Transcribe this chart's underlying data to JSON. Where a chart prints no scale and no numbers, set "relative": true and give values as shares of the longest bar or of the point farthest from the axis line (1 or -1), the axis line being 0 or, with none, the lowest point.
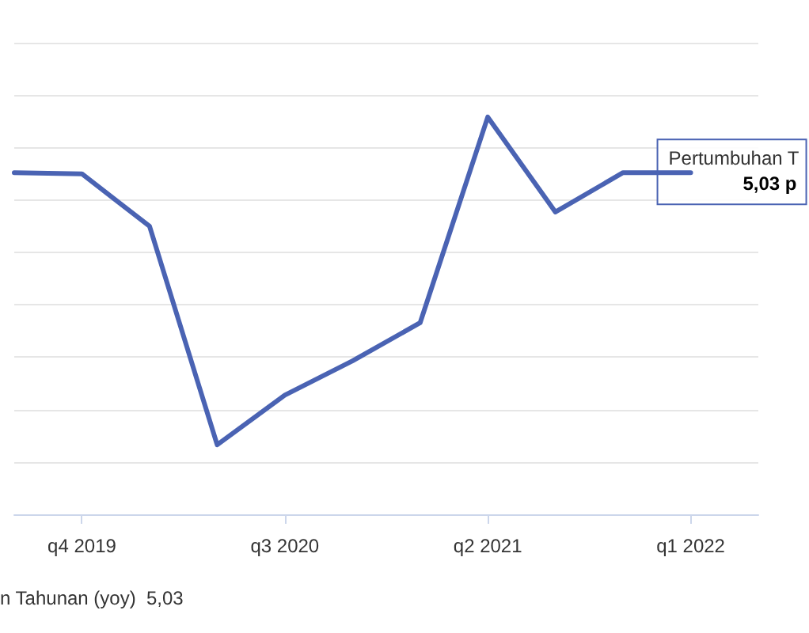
{
  "chart_data": {
    "type": "line",
    "relative": true,
    "grid": "y",
    "categories": [
      null,
      "q4 2019",
      null,
      null,
      "q3 2020",
      null,
      null,
      "q2 2021",
      null,
      null,
      "q1 2022",
      null
    ],
    "series": [
      {
        "color": "#4a63b3",
        "values": [
          0.86,
          0.857,
          0.725,
          0.175,
          0.3,
          0.386,
          0.482,
          1,
          0.761,
          0.86,
          0.86,
          null
        ]
      }
    ],
    "annotations": [
      {
        "text": "Pertumbuhan T\n5,03 p",
        "x": "q1 2022",
        "y": 0.86
      },
      "n Tahunan (yoy)  5,03"
    ]
  }
}
